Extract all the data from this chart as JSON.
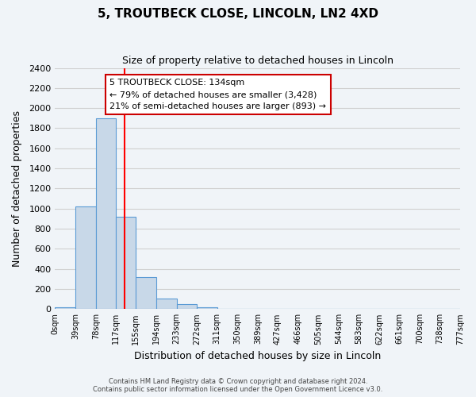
{
  "title": "5, TROUTBECK CLOSE, LINCOLN, LN2 4XD",
  "subtitle": "Size of property relative to detached houses in Lincoln",
  "bar_edges": [
    0,
    39,
    78,
    117,
    155,
    194,
    233,
    272,
    311,
    350,
    389,
    427,
    466,
    505,
    544,
    583,
    622,
    661,
    700,
    738,
    777
  ],
  "bar_heights": [
    20,
    1025,
    1900,
    920,
    315,
    105,
    50,
    20,
    0,
    0,
    0,
    0,
    0,
    0,
    0,
    0,
    0,
    0,
    0,
    0
  ],
  "bar_color": "#c8d8e8",
  "bar_edge_color": "#5b9bd5",
  "red_line_x": 134,
  "xlim": [
    0,
    777
  ],
  "ylim": [
    0,
    2400
  ],
  "yticks": [
    0,
    200,
    400,
    600,
    800,
    1000,
    1200,
    1400,
    1600,
    1800,
    2000,
    2200,
    2400
  ],
  "xtick_labels": [
    "0sqm",
    "39sqm",
    "78sqm",
    "117sqm",
    "155sqm",
    "194sqm",
    "233sqm",
    "272sqm",
    "311sqm",
    "350sqm",
    "389sqm",
    "427sqm",
    "466sqm",
    "505sqm",
    "544sqm",
    "583sqm",
    "622sqm",
    "661sqm",
    "700sqm",
    "738sqm",
    "777sqm"
  ],
  "xlabel": "Distribution of detached houses by size in Lincoln",
  "ylabel": "Number of detached properties",
  "annotation_title": "5 TROUTBECK CLOSE: 134sqm",
  "annotation_line1": "← 79% of detached houses are smaller (3,428)",
  "annotation_line2": "21% of semi-detached houses are larger (893) →",
  "footer1": "Contains HM Land Registry data © Crown copyright and database right 2024.",
  "footer2": "Contains public sector information licensed under the Open Government Licence v3.0.",
  "grid_color": "#d0d0d0",
  "background_color": "#f0f4f8"
}
